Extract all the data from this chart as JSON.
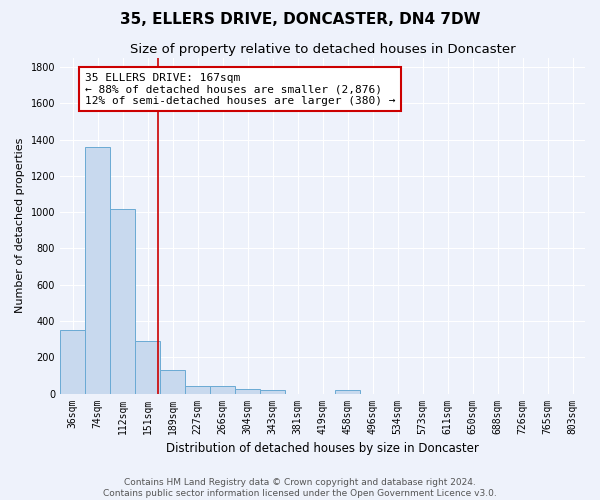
{
  "title": "35, ELLERS DRIVE, DONCASTER, DN4 7DW",
  "subtitle": "Size of property relative to detached houses in Doncaster",
  "xlabel": "Distribution of detached houses by size in Doncaster",
  "ylabel": "Number of detached properties",
  "bin_labels": [
    "36sqm",
    "74sqm",
    "112sqm",
    "151sqm",
    "189sqm",
    "227sqm",
    "266sqm",
    "304sqm",
    "343sqm",
    "381sqm",
    "419sqm",
    "458sqm",
    "496sqm",
    "534sqm",
    "573sqm",
    "611sqm",
    "650sqm",
    "688sqm",
    "726sqm",
    "765sqm",
    "803sqm"
  ],
  "bar_values": [
    350,
    1360,
    1020,
    290,
    130,
    40,
    40,
    25,
    20,
    0,
    0,
    20,
    0,
    0,
    0,
    0,
    0,
    0,
    0,
    0,
    0
  ],
  "bar_color": "#c8d9ee",
  "bar_edge_color": "#6aaad4",
  "property_line_x": 3.42,
  "property_line_color": "#cc0000",
  "annotation_text": "35 ELLERS DRIVE: 167sqm\n← 88% of detached houses are smaller (2,876)\n12% of semi-detached houses are larger (380) →",
  "annotation_box_color": "#ffffff",
  "annotation_box_edge_color": "#cc0000",
  "ylim": [
    0,
    1850
  ],
  "yticks": [
    0,
    200,
    400,
    600,
    800,
    1000,
    1200,
    1400,
    1600,
    1800
  ],
  "background_color": "#eef2fb",
  "grid_color": "#ffffff",
  "footer_text": "Contains HM Land Registry data © Crown copyright and database right 2024.\nContains public sector information licensed under the Open Government Licence v3.0.",
  "title_fontsize": 11,
  "subtitle_fontsize": 9.5,
  "xlabel_fontsize": 8.5,
  "ylabel_fontsize": 8,
  "tick_fontsize": 7,
  "annotation_fontsize": 8,
  "footer_fontsize": 6.5
}
